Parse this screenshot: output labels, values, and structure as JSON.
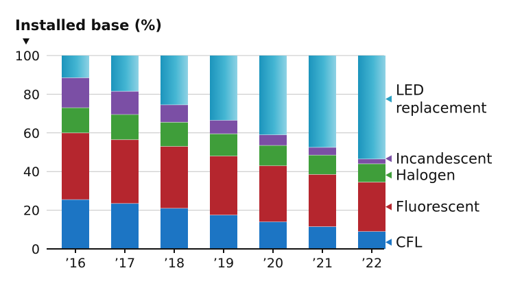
{
  "chart_data": {
    "type": "bar",
    "stacked": true,
    "title": "",
    "ylabel": "Installed base (%)",
    "xlabel": "",
    "categories": [
      "’16",
      "’17",
      "’18",
      "’19",
      "’20",
      "’21",
      "’22"
    ],
    "ylim": [
      0,
      100
    ],
    "yticks": [
      "0",
      "20",
      "40",
      "60",
      "80",
      "100"
    ],
    "grid": true,
    "legend_position": "right",
    "series": [
      {
        "name": "CFL",
        "values": [
          25.5,
          23.5,
          21,
          17.5,
          14,
          11.5,
          9
        ],
        "color": "#1c75c4"
      },
      {
        "name": "Fluorescent",
        "values": [
          34.5,
          33,
          32,
          30.5,
          29,
          27,
          25.5
        ],
        "color": "#b5262e"
      },
      {
        "name": "Halogen",
        "values": [
          13,
          13,
          12.5,
          11.5,
          10.5,
          10,
          9.5
        ],
        "color": "#3f9e3a"
      },
      {
        "name": "Incandescent",
        "values": [
          15.5,
          12,
          9,
          7,
          5.5,
          4,
          2.5
        ],
        "color": "#7b4fa5"
      },
      {
        "name": "LED replacement",
        "values": [
          11.5,
          18.5,
          25.5,
          33.5,
          41,
          47.5,
          53.5
        ],
        "color": "#2aa1c4"
      }
    ],
    "legend": [
      {
        "series": "LED replacement",
        "lines": [
          "LED",
          "replacement"
        ]
      },
      {
        "series": "Incandescent",
        "lines": [
          "Incandescent"
        ]
      },
      {
        "series": "Halogen",
        "lines": [
          "Halogen"
        ]
      },
      {
        "series": "Fluorescent",
        "lines": [
          "Fluorescent"
        ]
      },
      {
        "series": "CFL",
        "lines": [
          "CFL"
        ]
      }
    ]
  }
}
